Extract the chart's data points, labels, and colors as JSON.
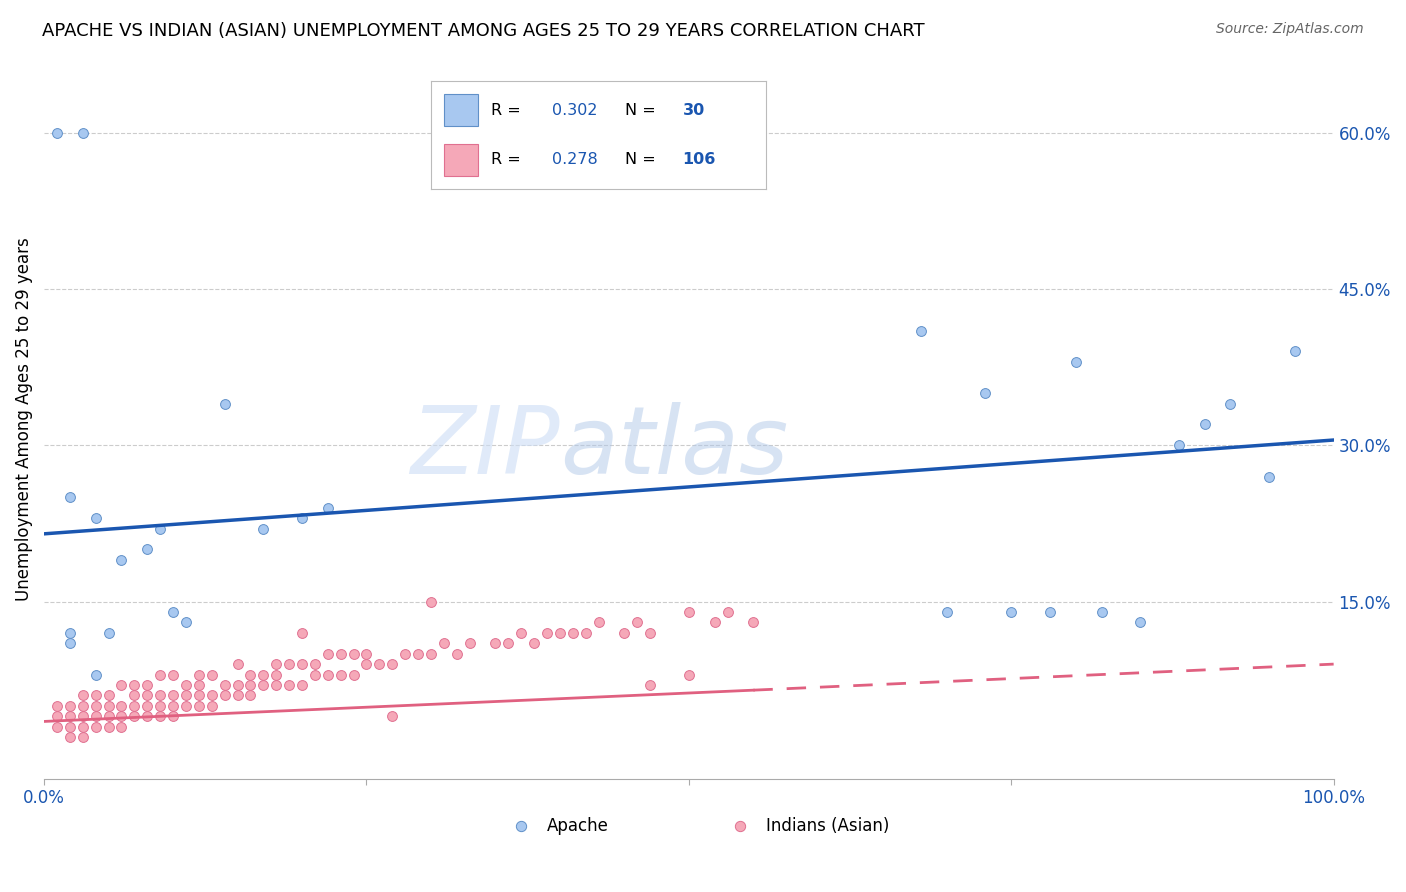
{
  "title": "APACHE VS INDIAN (ASIAN) UNEMPLOYMENT AMONG AGES 25 TO 29 YEARS CORRELATION CHART",
  "source": "Source: ZipAtlas.com",
  "ylabel": "Unemployment Among Ages 25 to 29 years",
  "xlim": [
    0.0,
    1.0
  ],
  "ylim": [
    -0.02,
    0.67
  ],
  "yticks": [
    0.0,
    0.15,
    0.3,
    0.45,
    0.6
  ],
  "ytick_labels": [
    "",
    "15.0%",
    "30.0%",
    "45.0%",
    "60.0%"
  ],
  "xticks": [
    0.0,
    0.25,
    0.5,
    0.75,
    1.0
  ],
  "xtick_labels": [
    "0.0%",
    "",
    "",
    "",
    "100.0%"
  ],
  "apache_color": "#a8c8f0",
  "apache_edge": "#6090c8",
  "indian_color": "#f5a8b8",
  "indian_edge": "#e07090",
  "trend_apache_color": "#1a56b0",
  "trend_indian_color": "#e06080",
  "R_apache": 0.302,
  "N_apache": 30,
  "R_indian": 0.278,
  "N_indian": 106,
  "watermark_zip": "ZIP",
  "watermark_atlas": "atlas",
  "apache_x": [
    0.02,
    0.05,
    0.01,
    0.03,
    0.02,
    0.04,
    0.06,
    0.08,
    0.09,
    0.11,
    0.14,
    0.17,
    0.2,
    0.22,
    0.02,
    0.04,
    0.7,
    0.75,
    0.78,
    0.82,
    0.85,
    0.88,
    0.9,
    0.92,
    0.95,
    0.97,
    0.73,
    0.8,
    0.68,
    0.1
  ],
  "apache_y": [
    0.12,
    0.12,
    0.6,
    0.6,
    0.11,
    0.08,
    0.19,
    0.2,
    0.22,
    0.13,
    0.34,
    0.22,
    0.23,
    0.24,
    0.25,
    0.23,
    0.14,
    0.14,
    0.14,
    0.14,
    0.13,
    0.3,
    0.32,
    0.34,
    0.27,
    0.39,
    0.35,
    0.38,
    0.41,
    0.14
  ],
  "indian_x": [
    0.01,
    0.01,
    0.01,
    0.02,
    0.02,
    0.02,
    0.02,
    0.03,
    0.03,
    0.03,
    0.03,
    0.03,
    0.04,
    0.04,
    0.04,
    0.04,
    0.05,
    0.05,
    0.05,
    0.05,
    0.06,
    0.06,
    0.06,
    0.06,
    0.07,
    0.07,
    0.07,
    0.07,
    0.08,
    0.08,
    0.08,
    0.08,
    0.09,
    0.09,
    0.09,
    0.09,
    0.1,
    0.1,
    0.1,
    0.1,
    0.11,
    0.11,
    0.11,
    0.12,
    0.12,
    0.12,
    0.12,
    0.13,
    0.13,
    0.13,
    0.14,
    0.14,
    0.15,
    0.15,
    0.15,
    0.16,
    0.16,
    0.16,
    0.17,
    0.17,
    0.18,
    0.18,
    0.19,
    0.19,
    0.2,
    0.2,
    0.21,
    0.21,
    0.22,
    0.22,
    0.23,
    0.23,
    0.24,
    0.24,
    0.25,
    0.25,
    0.26,
    0.27,
    0.28,
    0.29,
    0.3,
    0.31,
    0.32,
    0.33,
    0.35,
    0.36,
    0.37,
    0.38,
    0.39,
    0.4,
    0.41,
    0.42,
    0.43,
    0.45,
    0.46,
    0.47,
    0.5,
    0.52,
    0.53,
    0.55,
    0.18,
    0.2,
    0.27,
    0.3,
    0.47,
    0.5
  ],
  "indian_y": [
    0.03,
    0.04,
    0.05,
    0.02,
    0.03,
    0.04,
    0.05,
    0.02,
    0.03,
    0.04,
    0.05,
    0.06,
    0.03,
    0.04,
    0.05,
    0.06,
    0.03,
    0.04,
    0.05,
    0.06,
    0.03,
    0.04,
    0.05,
    0.07,
    0.04,
    0.05,
    0.06,
    0.07,
    0.04,
    0.05,
    0.06,
    0.07,
    0.04,
    0.05,
    0.06,
    0.08,
    0.04,
    0.05,
    0.06,
    0.08,
    0.05,
    0.06,
    0.07,
    0.05,
    0.06,
    0.07,
    0.08,
    0.05,
    0.06,
    0.08,
    0.06,
    0.07,
    0.06,
    0.07,
    0.09,
    0.06,
    0.07,
    0.08,
    0.07,
    0.08,
    0.07,
    0.08,
    0.07,
    0.09,
    0.07,
    0.09,
    0.08,
    0.09,
    0.08,
    0.1,
    0.08,
    0.1,
    0.08,
    0.1,
    0.09,
    0.1,
    0.09,
    0.09,
    0.1,
    0.1,
    0.1,
    0.11,
    0.1,
    0.11,
    0.11,
    0.11,
    0.12,
    0.11,
    0.12,
    0.12,
    0.12,
    0.12,
    0.13,
    0.12,
    0.13,
    0.12,
    0.14,
    0.13,
    0.14,
    0.13,
    0.09,
    0.12,
    0.04,
    0.15,
    0.07,
    0.08
  ],
  "trend_apache_x0": 0.0,
  "trend_apache_y0": 0.215,
  "trend_apache_x1": 1.0,
  "trend_apache_y1": 0.305,
  "trend_indian_x0": 0.0,
  "trend_indian_y0": 0.035,
  "trend_indian_x1": 0.55,
  "trend_indian_y1": 0.065,
  "trend_indian_dash_x0": 0.55,
  "trend_indian_dash_y0": 0.065,
  "trend_indian_dash_x1": 1.0,
  "trend_indian_dash_y1": 0.09,
  "grid_color": "#cccccc",
  "tick_color": "#1a56b0",
  "bottom_label_apache": "Apache",
  "bottom_label_indian": "Indians (Asian)"
}
